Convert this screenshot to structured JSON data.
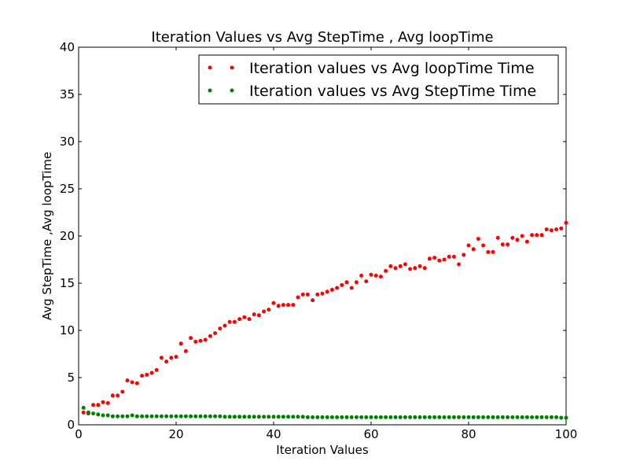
{
  "chart_data": {
    "type": "scatter",
    "title": "Iteration Values vs Avg StepTime , Avg loopTime",
    "xlabel": "Iteration Values",
    "ylabel": "Avg StepTime ,Avg loopTime",
    "xlim": [
      0,
      100
    ],
    "ylim": [
      0,
      40
    ],
    "xticks": [
      0,
      20,
      40,
      60,
      80,
      100
    ],
    "yticks": [
      0,
      5,
      10,
      15,
      20,
      25,
      30,
      35,
      40
    ],
    "grid": false,
    "legend_position": "top-right",
    "x": [
      1,
      2,
      3,
      4,
      5,
      6,
      7,
      8,
      9,
      10,
      11,
      12,
      13,
      14,
      15,
      16,
      17,
      18,
      19,
      20,
      21,
      22,
      23,
      24,
      25,
      26,
      27,
      28,
      29,
      30,
      31,
      32,
      33,
      34,
      35,
      36,
      37,
      38,
      39,
      40,
      41,
      42,
      43,
      44,
      45,
      46,
      47,
      48,
      49,
      50,
      51,
      52,
      53,
      54,
      55,
      56,
      57,
      58,
      59,
      60,
      61,
      62,
      63,
      64,
      65,
      66,
      67,
      68,
      69,
      70,
      71,
      72,
      73,
      74,
      75,
      76,
      77,
      78,
      79,
      80,
      81,
      82,
      83,
      84,
      85,
      86,
      87,
      88,
      89,
      90,
      91,
      92,
      93,
      94,
      95,
      96,
      97,
      98,
      99,
      100
    ],
    "series": [
      {
        "name": "Iteration values vs Avg loopTime Time",
        "color": "#ff0000",
        "values": [
          1.3,
          1.2,
          2.1,
          2.1,
          2.4,
          2.3,
          3.1,
          3.1,
          3.5,
          4.7,
          4.5,
          4.4,
          5.2,
          5.3,
          5.5,
          5.8,
          7.1,
          6.7,
          7.1,
          7.2,
          8.6,
          7.8,
          9.2,
          8.8,
          8.9,
          9.0,
          9.4,
          9.7,
          10.2,
          10.5,
          10.9,
          10.9,
          11.2,
          11.4,
          11.2,
          11.7,
          11.6,
          12.0,
          12.2,
          12.9,
          12.6,
          12.7,
          12.7,
          12.7,
          13.5,
          13.8,
          13.8,
          13.2,
          13.8,
          13.9,
          14.1,
          14.3,
          14.5,
          14.8,
          15.1,
          14.5,
          15.1,
          15.8,
          15.2,
          15.9,
          15.8,
          15.7,
          16.3,
          16.8,
          16.6,
          16.8,
          17.0,
          16.5,
          16.6,
          16.8,
          16.6,
          17.6,
          17.7,
          17.4,
          17.5,
          17.8,
          17.8,
          17.0,
          18.0,
          19.0,
          18.6,
          19.7,
          19.0,
          18.3,
          18.3,
          19.8,
          19.1,
          19.1,
          19.8,
          19.6,
          20.0,
          19.4,
          20.1,
          20.1,
          20.1,
          20.7,
          20.6,
          20.7,
          20.8,
          21.4
        ]
      },
      {
        "name": "Iteration values vs Avg StepTime Time",
        "color": "#008000",
        "values": [
          1.8,
          1.3,
          1.2,
          1.1,
          1.0,
          1.0,
          0.9,
          0.9,
          0.9,
          0.9,
          1.0,
          0.9,
          0.9,
          0.9,
          0.9,
          0.9,
          0.9,
          0.9,
          0.9,
          0.9,
          0.9,
          0.9,
          0.9,
          0.9,
          0.9,
          0.9,
          0.9,
          0.9,
          0.9,
          0.85,
          0.85,
          0.85,
          0.85,
          0.85,
          0.85,
          0.85,
          0.85,
          0.85,
          0.85,
          0.85,
          0.85,
          0.85,
          0.85,
          0.85,
          0.85,
          0.85,
          0.8,
          0.8,
          0.8,
          0.8,
          0.8,
          0.8,
          0.8,
          0.8,
          0.8,
          0.8,
          0.8,
          0.8,
          0.8,
          0.8,
          0.8,
          0.8,
          0.8,
          0.8,
          0.8,
          0.8,
          0.8,
          0.8,
          0.8,
          0.8,
          0.8,
          0.8,
          0.8,
          0.8,
          0.8,
          0.8,
          0.8,
          0.8,
          0.8,
          0.8,
          0.8,
          0.8,
          0.8,
          0.8,
          0.8,
          0.8,
          0.8,
          0.8,
          0.8,
          0.8,
          0.8,
          0.8,
          0.8,
          0.8,
          0.8,
          0.8,
          0.8,
          0.8,
          0.75,
          0.75
        ]
      }
    ]
  }
}
